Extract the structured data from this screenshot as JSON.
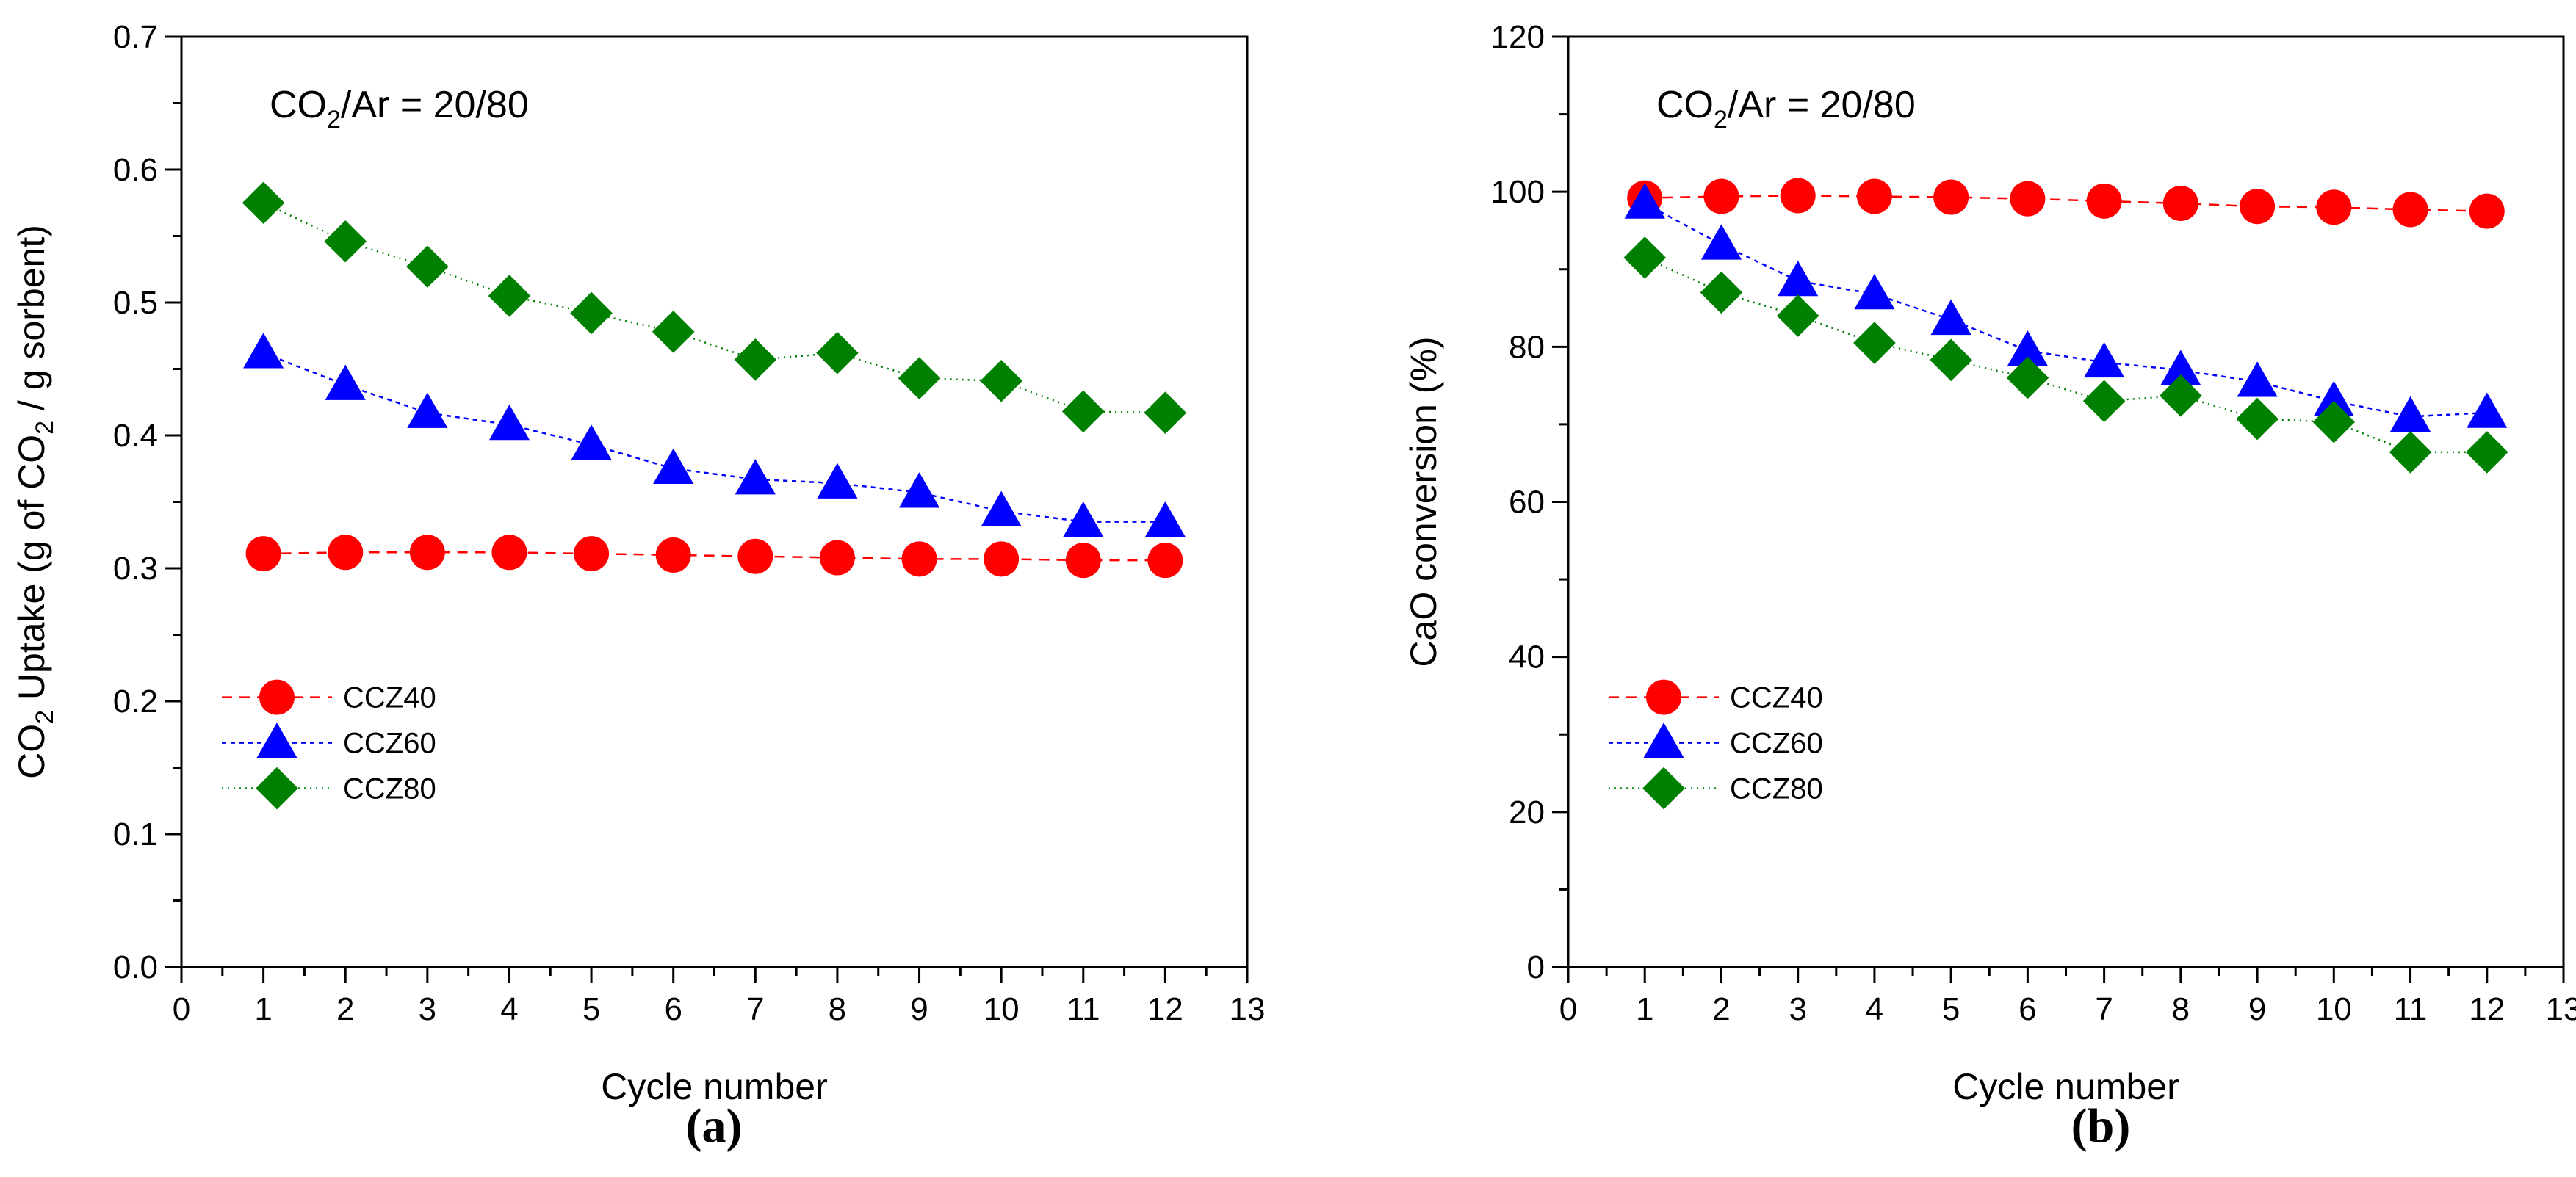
{
  "chart_data": [
    {
      "type": "line",
      "panel_label": "(a)",
      "xlabel": "Cycle number",
      "ylabel": {
        "pre": "CO",
        "sub": "2",
        "mid": " Uptake (g of CO",
        "sub2": "2",
        "post": " / g sorbent)"
      },
      "annotation": {
        "pre": "CO",
        "sub": "2",
        "post": "/Ar = 20/80"
      },
      "xlim": [
        0,
        13
      ],
      "ylim": [
        0.0,
        0.7
      ],
      "x_ticks": [
        "0",
        "1",
        "2",
        "3",
        "4",
        "5",
        "6",
        "7",
        "8",
        "9",
        "10",
        "11",
        "12",
        "13"
      ],
      "y_ticks": [
        "0.0",
        "0.1",
        "0.2",
        "0.3",
        "0.4",
        "0.5",
        "0.6",
        "0.7"
      ],
      "legend_position": "bottom-left",
      "x": [
        1,
        2,
        3,
        4,
        5,
        6,
        7,
        8,
        9,
        10,
        11,
        12
      ],
      "series": [
        {
          "name": "CCZ40",
          "color": "#ff0000",
          "marker": "circle",
          "values": [
            0.311,
            0.312,
            0.312,
            0.312,
            0.311,
            0.31,
            0.309,
            0.308,
            0.307,
            0.307,
            0.306,
            0.306
          ]
        },
        {
          "name": "CCZ60",
          "color": "#0000ff",
          "marker": "triangle",
          "values": [
            0.462,
            0.438,
            0.417,
            0.408,
            0.393,
            0.375,
            0.367,
            0.364,
            0.357,
            0.343,
            0.335,
            0.335
          ]
        },
        {
          "name": "CCZ80",
          "color": "#008000",
          "marker": "diamond",
          "values": [
            0.575,
            0.546,
            0.527,
            0.505,
            0.492,
            0.478,
            0.457,
            0.462,
            0.443,
            0.441,
            0.418,
            0.417
          ]
        }
      ]
    },
    {
      "type": "line",
      "panel_label": "(b)",
      "xlabel": "Cycle number",
      "ylabel": {
        "pre": "CaO conversion (%)"
      },
      "annotation": {
        "pre": "CO",
        "sub": "2",
        "post": "/Ar = 20/80"
      },
      "xlim": [
        0,
        13
      ],
      "ylim": [
        0,
        120
      ],
      "x_ticks": [
        "0",
        "1",
        "2",
        "3",
        "4",
        "5",
        "6",
        "7",
        "8",
        "9",
        "10",
        "11",
        "12",
        "13"
      ],
      "y_ticks": [
        "0",
        "20",
        "40",
        "60",
        "80",
        "100",
        "120"
      ],
      "legend_position": "bottom-left",
      "x": [
        1,
        2,
        3,
        4,
        5,
        6,
        7,
        8,
        9,
        10,
        11,
        12
      ],
      "series": [
        {
          "name": "CCZ40",
          "color": "#ff0000",
          "marker": "circle",
          "values": [
            99.2,
            99.4,
            99.5,
            99.4,
            99.3,
            99.1,
            98.8,
            98.5,
            98.1,
            98.0,
            97.7,
            97.5
          ]
        },
        {
          "name": "CCZ60",
          "color": "#0000ff",
          "marker": "triangle",
          "values": [
            98.5,
            93.2,
            88.5,
            86.8,
            83.5,
            79.5,
            78.0,
            77.0,
            75.5,
            73.0,
            71.0,
            71.5
          ]
        },
        {
          "name": "CCZ80",
          "color": "#008000",
          "marker": "diamond",
          "values": [
            91.5,
            87.0,
            84.0,
            80.5,
            78.3,
            76.0,
            73.0,
            73.7,
            70.7,
            70.3,
            66.4,
            66.4
          ]
        }
      ]
    }
  ]
}
